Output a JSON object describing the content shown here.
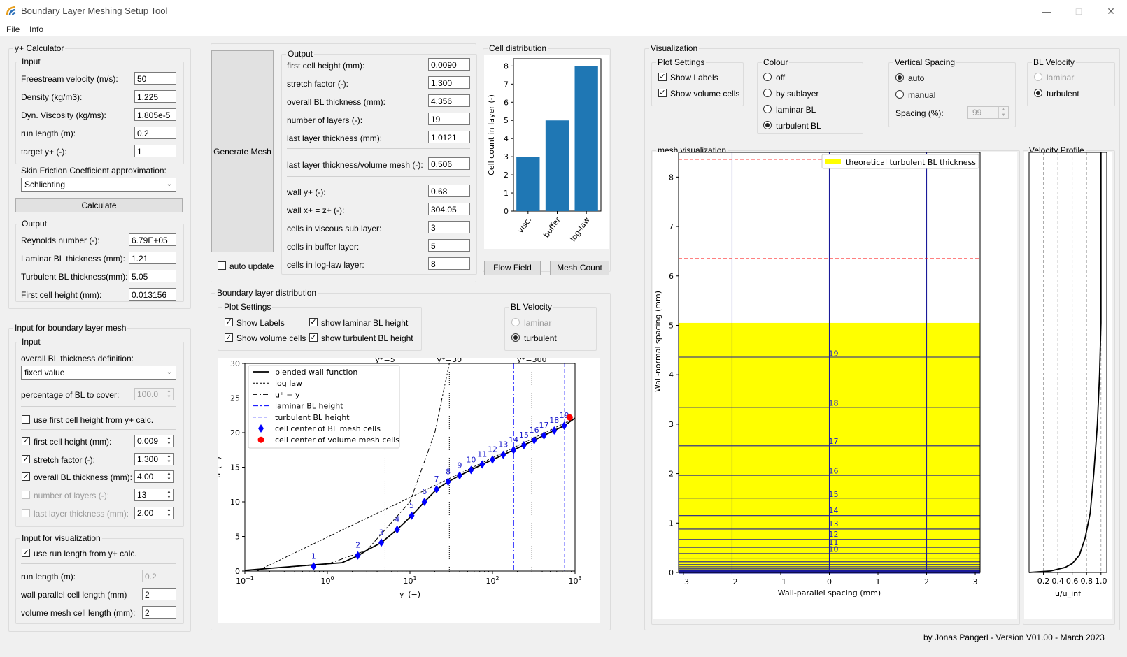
{
  "window": {
    "title": "Boundary Layer Meshing Setup Tool"
  },
  "menu": {
    "file": "File",
    "info": "Info"
  },
  "yplus": {
    "title": "y+ Calculator",
    "input_title": "Input",
    "fields": [
      {
        "label": "Freestream velocity (m/s):",
        "value": "50"
      },
      {
        "label": "Density (kg/m3):",
        "value": "1.225"
      },
      {
        "label": "Dyn. Viscosity (kg/ms):",
        "value": "1.805e-5"
      },
      {
        "label": "run length (m):",
        "value": "0.2"
      },
      {
        "label": "target y+ (-):",
        "value": "1"
      }
    ],
    "skin_label": "Skin Friction Coefficient approximation:",
    "skin_value": "Schlichting",
    "calculate": "Calculate",
    "output_title": "Output",
    "outputs": [
      {
        "label": "Reynolds number (-):",
        "value": "6.79E+05"
      },
      {
        "label": "Laminar BL thickness (mm):",
        "value": "1.21"
      },
      {
        "label": "Turbulent BL thickness(mm):",
        "value": "5.05"
      },
      {
        "label": "First cell height (mm):",
        "value": "0.013156"
      }
    ]
  },
  "blmesh": {
    "title": "Input for boundary layer mesh",
    "input_title": "Input",
    "def_label": "overall BL thickness definition:",
    "def_value": "fixed value",
    "pct_label": "percentage of BL to cover:",
    "pct_value": "100.0",
    "use_first_label": "use first cell height from y+ calc.",
    "rows": [
      {
        "label": "first cell height (mm):",
        "value": "0.009"
      },
      {
        "label": "stretch factor (-):",
        "value": "1.300"
      },
      {
        "label": "overall BL thickness (mm):",
        "value": "4.00"
      },
      {
        "label": "number of layers (-):",
        "value": "13"
      },
      {
        "label": "last layer thickness (mm):",
        "value": "2.00"
      }
    ],
    "vis_title": "Input for visualization",
    "use_run_label": "use run length from y+ calc.",
    "vis_rows": [
      {
        "label": "run length (m):",
        "value": "0.2"
      },
      {
        "label": "wall parallel cell length (mm)",
        "value": "2"
      },
      {
        "label": "volume mesh cell length (mm):",
        "value": "2"
      }
    ]
  },
  "generate": {
    "label": "Generate Mesh",
    "auto_update": "auto update"
  },
  "output": {
    "title": "Output",
    "rows": [
      {
        "label": "first cell height (mm):",
        "value": "0.0090"
      },
      {
        "label": "stretch factor (-):",
        "value": "1.300"
      },
      {
        "label": "overall BL thickness (mm):",
        "value": "4.356"
      },
      {
        "label": "number of layers (-):",
        "value": "19"
      },
      {
        "label": "last layer thickness (mm):",
        "value": "1.0121"
      },
      {
        "label": "last layer thickness/volume mesh (-):",
        "value": "0.506"
      },
      {
        "label": "wall y+ (-):",
        "value": "0.68"
      },
      {
        "label": "wall x+ = z+ (-):",
        "value": "304.05"
      },
      {
        "label": "cells in viscous sub layer:",
        "value": "3"
      },
      {
        "label": "cells in buffer layer:",
        "value": "5"
      },
      {
        "label": "cells in log-law layer:",
        "value": "8"
      }
    ]
  },
  "celldist": {
    "title": "Cell distribution",
    "flow_field": "Flow Field",
    "mesh_count": "Mesh Count",
    "chart_data": {
      "type": "bar",
      "categories": [
        "visc.",
        "buffer",
        "log-law"
      ],
      "values": [
        3,
        5,
        8
      ],
      "ylabel": "Cell count in layer (-)",
      "yticks": [
        "0",
        "1",
        "2",
        "3",
        "4",
        "5",
        "6",
        "7",
        "8"
      ],
      "ylim": [
        0,
        8.4
      ],
      "bar_color": "#1f77b4"
    }
  },
  "bldist": {
    "title": "Boundary layer distribution",
    "plot_settings_title": "Plot Settings",
    "show_labels": "Show Labels",
    "show_volume": "Show volume cells",
    "show_laminar": "show laminar BL height",
    "show_turbulent": "show turbulent BL height",
    "blvel_title": "BL Velocity",
    "laminar": "laminar",
    "turbulent": "turbulent",
    "chart_data": {
      "type": "line",
      "xscale": "log",
      "xlim": [
        0.1,
        1000
      ],
      "ylim": [
        0,
        30
      ],
      "xlabel": "y⁺(−)",
      "ylabel": "u⁺(−)",
      "xticks": [
        {
          "v": 0.1,
          "base": "10",
          "exp": "−1"
        },
        {
          "v": 1,
          "base": "10",
          "exp": "0"
        },
        {
          "v": 10,
          "base": "10",
          "exp": "1"
        },
        {
          "v": 100,
          "base": "10",
          "exp": "2"
        },
        {
          "v": 1000,
          "base": "10",
          "exp": "3"
        }
      ],
      "yticks": [
        0,
        5,
        10,
        15,
        20,
        25,
        30
      ],
      "top_labels": [
        {
          "x": 5,
          "text": "y⁺=5"
        },
        {
          "x": 30,
          "text": "y⁺=30"
        },
        {
          "x": 300,
          "text": "y⁺=300"
        }
      ],
      "laminar_bl_x": 180,
      "turbulent_bl_x": 750,
      "legend": [
        "blended wall function",
        "log law",
        "u⁺ = y⁺",
        "laminar BL height",
        "turbulent BL height",
        "cell center of BL mesh cells",
        "cell center of volume mesh cells"
      ],
      "cells": [
        {
          "n": "1",
          "x": 0.68,
          "y": 0.68
        },
        {
          "n": "2",
          "x": 2.34,
          "y": 2.25
        },
        {
          "n": "3",
          "x": 4.5,
          "y": 4.1
        },
        {
          "n": "4",
          "x": 7.0,
          "y": 6.0
        },
        {
          "n": "5",
          "x": 10.5,
          "y": 8.0
        },
        {
          "n": "6",
          "x": 15.0,
          "y": 10.0
        },
        {
          "n": "7",
          "x": 21.0,
          "y": 11.8
        },
        {
          "n": "8",
          "x": 29.0,
          "y": 12.9
        },
        {
          "n": "9",
          "x": 40.0,
          "y": 13.8
        },
        {
          "n": "10",
          "x": 55.0,
          "y": 14.6
        },
        {
          "n": "11",
          "x": 75.0,
          "y": 15.4
        },
        {
          "n": "12",
          "x": 100.0,
          "y": 16.1
        },
        {
          "n": "13",
          "x": 135.0,
          "y": 16.8
        },
        {
          "n": "14",
          "x": 180.0,
          "y": 17.5
        },
        {
          "n": "15",
          "x": 240.0,
          "y": 18.2
        },
        {
          "n": "16",
          "x": 320.0,
          "y": 18.9
        },
        {
          "n": "17",
          "x": 420.0,
          "y": 19.6
        },
        {
          "n": "18",
          "x": 560.0,
          "y": 20.3
        },
        {
          "n": "19",
          "x": 740.0,
          "y": 21.0
        }
      ],
      "volume_cell": {
        "x": 860,
        "y": 22.2
      },
      "blended": [
        [
          0.1,
          0.1
        ],
        [
          0.68,
          0.9
        ],
        [
          1.5,
          1.2
        ],
        [
          2.34,
          2.2
        ],
        [
          3,
          3.0
        ],
        [
          4.5,
          4.1
        ],
        [
          7,
          6.0
        ],
        [
          10.5,
          8.0
        ],
        [
          15,
          10.0
        ],
        [
          21,
          11.8
        ],
        [
          29,
          12.9
        ],
        [
          40,
          13.8
        ],
        [
          75,
          15.4
        ],
        [
          135,
          16.8
        ],
        [
          240,
          18.2
        ],
        [
          420,
          19.6
        ],
        [
          740,
          21.0
        ],
        [
          1000,
          22.1
        ]
      ],
      "loglaw": [
        [
          0.14,
          0
        ],
        [
          1000,
          22.1
        ]
      ],
      "linear": [
        [
          0.1,
          0.1
        ],
        [
          1,
          1
        ],
        [
          3,
          3
        ],
        [
          10,
          10
        ],
        [
          20,
          20
        ],
        [
          30,
          30
        ]
      ],
      "colors": {
        "blue": "#0000ff",
        "red": "#ff0000",
        "darkblue": "#1a1acc"
      }
    }
  },
  "visual": {
    "title": "Visualization",
    "plot_settings": {
      "title": "Plot Settings",
      "show_labels": "Show Labels",
      "show_volume": "Show volume cells"
    },
    "colour": {
      "title": "Colour",
      "options": [
        "off",
        "by sublayer",
        "laminar BL",
        "turbulent BL"
      ]
    },
    "vspacing": {
      "title": "Vertical Spacing",
      "auto": "auto",
      "manual": "manual",
      "spacing_label": "Spacing (%):",
      "spacing_value": "99"
    },
    "blvel": {
      "title": "BL Velocity",
      "laminar": "laminar",
      "turbulent": "turbulent"
    },
    "mesh": {
      "title": "mesh visualization",
      "chart_data": {
        "type": "area",
        "xlabel": "Wall-parallel spacing (mm)",
        "ylabel": "Wall-normal spacing (mm)",
        "xlim": [
          -3.1,
          3.1
        ],
        "ylim": [
          0,
          8.5
        ],
        "xticks": [
          {
            "v": -3,
            "t": "−3"
          },
          {
            "v": -2,
            "t": "−2"
          },
          {
            "v": -1,
            "t": "−1"
          },
          {
            "v": 0,
            "t": "0"
          },
          {
            "v": 1,
            "t": "1"
          },
          {
            "v": 2,
            "t": "2"
          },
          {
            "v": 3,
            "t": "3"
          }
        ],
        "yticks": [
          0,
          1,
          2,
          3,
          4,
          5,
          6,
          7,
          8
        ],
        "turbulent_bl_thickness": 5.05,
        "dashed_lines": [
          6.35,
          8.36
        ],
        "vertical_lines": [
          -2,
          0,
          2
        ],
        "layers": [
          0.009,
          0.0207,
          0.0359,
          0.0557,
          0.0814,
          0.1148,
          0.1583,
          0.2147,
          0.288,
          0.3834,
          0.5073,
          0.6684,
          0.8778,
          1.15,
          1.5039,
          1.964,
          2.5621,
          3.3397,
          4.356
        ],
        "layer_labels": [
          {
            "n": "10",
            "y": 0.42
          },
          {
            "n": "11",
            "y": 0.55
          },
          {
            "n": "12",
            "y": 0.72
          },
          {
            "n": "13",
            "y": 0.93
          },
          {
            "n": "14",
            "y": 1.2
          },
          {
            "n": "15",
            "y": 1.53
          },
          {
            "n": "16",
            "y": 2.0
          },
          {
            "n": "17",
            "y": 2.6
          },
          {
            "n": "18",
            "y": 3.37
          },
          {
            "n": "19",
            "y": 4.38
          }
        ],
        "legend": "theoretical turbulent BL thickness",
        "fill_color": "#ffff00"
      }
    },
    "velocity": {
      "title": "Velocity Profile",
      "chart_data": {
        "type": "line",
        "xlabel": "u/u_inf",
        "xticks": [
          "0.2",
          "0.4",
          "0.6",
          "0.8",
          "1.0"
        ],
        "xtick_values": [
          0.2,
          0.4,
          0.6,
          0.8,
          1.0
        ],
        "xlim": [
          0,
          1.08
        ],
        "ylim": [
          0,
          8.5
        ],
        "profile": [
          [
            0,
            0
          ],
          [
            0.3,
            0.03
          ],
          [
            0.5,
            0.1
          ],
          [
            0.6,
            0.18
          ],
          [
            0.7,
            0.35
          ],
          [
            0.78,
            0.7
          ],
          [
            0.85,
            1.2
          ],
          [
            0.9,
            2.0
          ],
          [
            0.95,
            3.0
          ],
          [
            0.98,
            4.0
          ],
          [
            1.0,
            5.05
          ],
          [
            1.0,
            8.5
          ]
        ]
      }
    }
  },
  "footer": {
    "credit": "by Jonas Pangerl - Version V01.00 -  March 2023"
  }
}
